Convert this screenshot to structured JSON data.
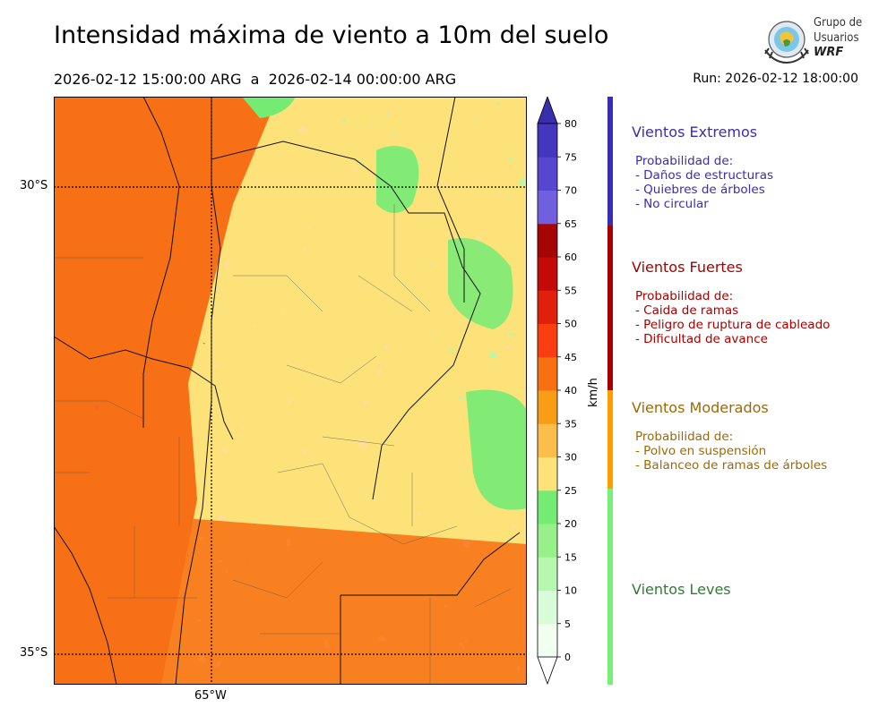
{
  "title": "Intensidad máxima de viento a 10m del suelo",
  "period": {
    "start": "2026-02-12 15:00:00 ARG",
    "separator": "a",
    "end": "2026-02-14 00:00:00 ARG"
  },
  "run": "Run: 2026-02-12 18:00:00",
  "logo": {
    "line1": "Grupo de",
    "line2": "Usuarios",
    "line3": "WRF"
  },
  "axes": {
    "lat_labels": [
      "30°S",
      "35°S"
    ],
    "lon_labels": [
      "65°W"
    ]
  },
  "colorbar": {
    "unit": "km/h",
    "ticks": [
      0,
      5,
      10,
      15,
      20,
      25,
      30,
      35,
      40,
      45,
      50,
      55,
      60,
      65,
      70,
      75,
      80
    ],
    "colors": [
      "#f0fff0",
      "#d8fcd8",
      "#b8f7b0",
      "#98f08a",
      "#74ec74",
      "#fde27a",
      "#fdbd4a",
      "#f99c16",
      "#f87012",
      "#fa3e0f",
      "#e0200b",
      "#c40a07",
      "#a50505",
      "#7060e0",
      "#5747d0",
      "#4536c0"
    ],
    "extend_color": "#3a2eb0"
  },
  "categories": [
    {
      "title": "Vientos Extremos",
      "color": "#3a2db5",
      "lines": [
        "Probabilidad de:",
        "- Daños de estructuras",
        "- Quiebres de árboles",
        "- No circular"
      ]
    },
    {
      "title": "Vientos Fuertes",
      "color": "#a80000",
      "lines": [
        "Probabilidad de:",
        "- Caida de ramas",
        "- Peligro de ruptura de cableado",
        "- Dificultad de avance"
      ]
    },
    {
      "title": "Vientos Moderados",
      "color": "#a26800",
      "bar_color": "#ff9c00",
      "lines": [
        "Probabilidad de:",
        "- Polvo en suspensión",
        "- Balanceo de ramas de árboles"
      ]
    },
    {
      "title": "Vientos Leves",
      "color": "#2e7d32",
      "bar_color": "#78f078",
      "lines": []
    }
  ]
}
